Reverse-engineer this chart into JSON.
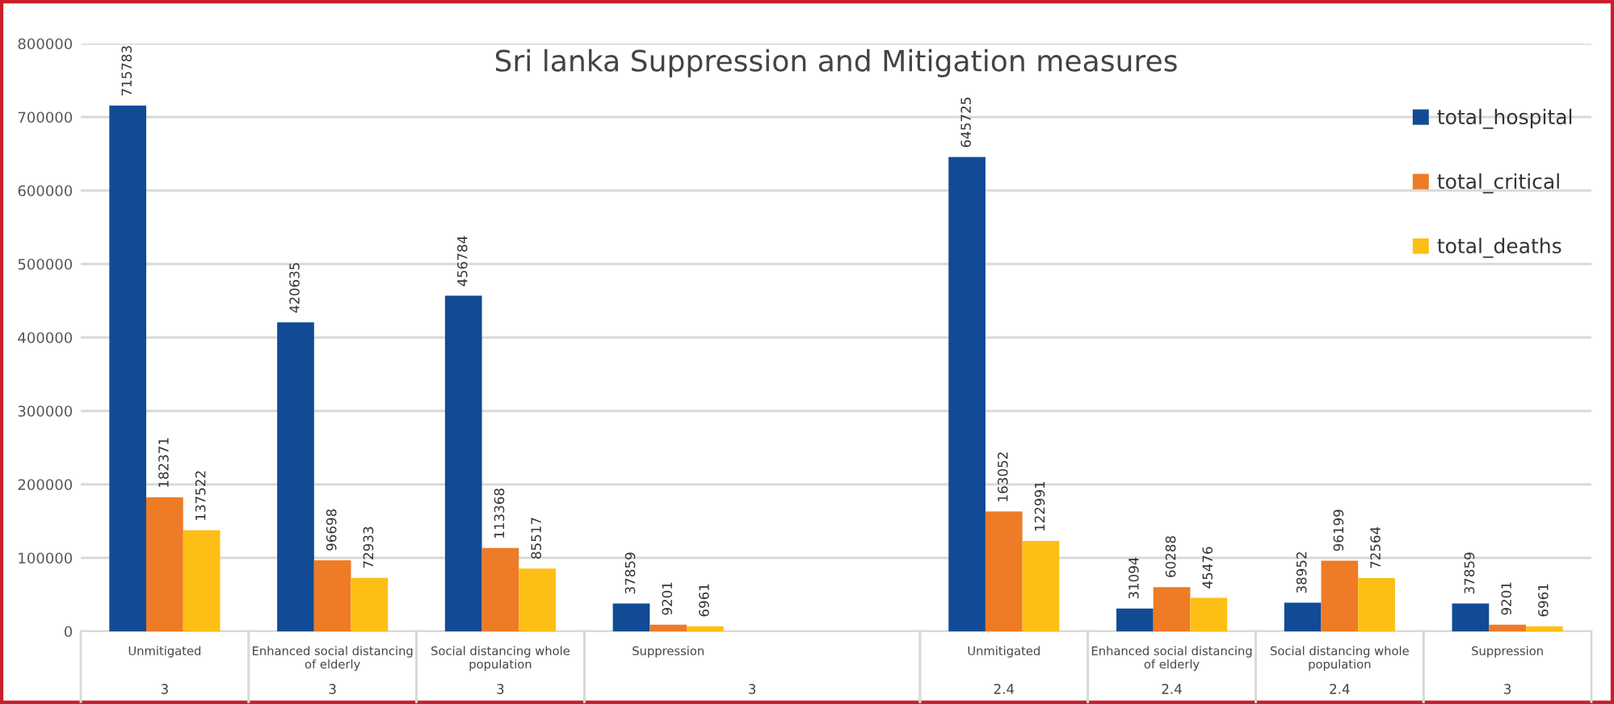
{
  "chart_data": {
    "type": "bar",
    "title": "Sri lanka Suppression and Mitigation measures",
    "categories": [
      "Unmitigated",
      "Enhanced social distancing\nof elderly",
      "Social distancing whole\npopulation",
      "Suppression",
      null,
      "Unmitigated",
      "Enhanced social distancing\nof elderly",
      "Social distancing whole\npopulation",
      "Suppression"
    ],
    "series": [
      {
        "name": "total_hospital",
        "color": "#114b95",
        "values": [
          715783,
          420635,
          456784,
          37859,
          null,
          645725,
          31094,
          38952,
          37859
        ]
      },
      {
        "name": "total_critical",
        "color": "#ee7b26",
        "values": [
          182371,
          96698,
          113368,
          9201,
          null,
          163052,
          60288,
          96199,
          9201
        ]
      },
      {
        "name": "total_deaths",
        "color": "#fdbe16",
        "values": [
          137522,
          72933,
          85517,
          6961,
          null,
          122991,
          45476,
          72564,
          6961
        ]
      }
    ],
    "annotations": [
      "3",
      "3",
      "3",
      "3",
      "2.4",
      "2.4",
      "2.4",
      "3"
    ],
    "ylim": [
      0,
      800000
    ],
    "yticks": [
      0,
      100000,
      200000,
      300000,
      400000,
      500000,
      600000,
      700000,
      800000
    ],
    "grid": "y",
    "legend": "top right",
    "data_labels": true
  }
}
